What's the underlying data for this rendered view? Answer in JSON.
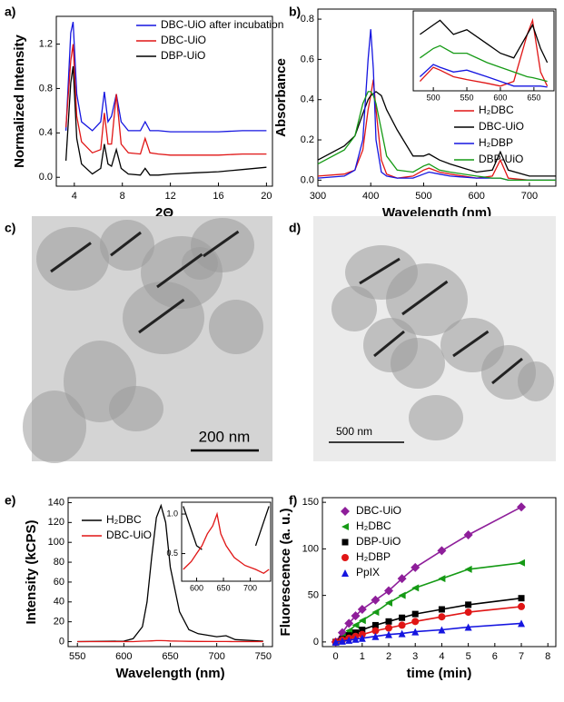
{
  "chart_data": [
    {
      "type": "line",
      "panel": "a)",
      "xlabel": "2Θ",
      "ylabel": "Normalized Intensity",
      "x": [
        3.3,
        3.7,
        3.9,
        4.2,
        4.6,
        5.5,
        6.2,
        6.5,
        6.8,
        7.1,
        7.5,
        7.9,
        8.5,
        9.5,
        9.9,
        10.3,
        11,
        12,
        14,
        16,
        18,
        20
      ],
      "xlim": [
        2.5,
        20.5
      ],
      "ylim": [
        -0.08,
        1.45
      ],
      "xticks": [
        4,
        8,
        12,
        16,
        20
      ],
      "yticks": [
        {
          "value": 0,
          "label": "0.0"
        },
        0.4,
        0.8,
        1.2
      ],
      "series": [
        {
          "name": "DBC-UiO after incubation",
          "color": "#1515e0",
          "values": [
            0.42,
            1.3,
            1.4,
            0.75,
            0.5,
            0.42,
            0.5,
            0.77,
            0.5,
            0.55,
            0.75,
            0.5,
            0.42,
            0.42,
            0.5,
            0.42,
            0.42,
            0.41,
            0.41,
            0.41,
            0.42,
            0.42
          ]
        },
        {
          "name": "DBC-UiO",
          "color": "#e01515",
          "values": [
            0.45,
            1.05,
            1.2,
            0.55,
            0.32,
            0.22,
            0.25,
            0.58,
            0.3,
            0.3,
            0.75,
            0.3,
            0.22,
            0.21,
            0.35,
            0.22,
            0.21,
            0.2,
            0.2,
            0.2,
            0.21,
            0.21
          ]
        },
        {
          "name": "DBP-UiO",
          "color": "#000000",
          "values": [
            0.15,
            0.85,
            1.0,
            0.35,
            0.12,
            0.03,
            0.08,
            0.3,
            0.12,
            0.1,
            0.25,
            0.08,
            0.03,
            0.02,
            0.08,
            0.02,
            0.02,
            0.03,
            0.04,
            0.05,
            0.07,
            0.09
          ]
        }
      ]
    },
    {
      "type": "line",
      "panel": "b)",
      "xlabel": "Wavelength (nm)",
      "ylabel": "Absorbance",
      "x": [
        300,
        350,
        370,
        385,
        395,
        400,
        405,
        410,
        420,
        430,
        450,
        480,
        500,
        510,
        530,
        550,
        600,
        630,
        645,
        660,
        700,
        750
      ],
      "xlim": [
        300,
        750
      ],
      "ylim": [
        -0.03,
        0.85
      ],
      "xticks": [
        300,
        400,
        500,
        600,
        700
      ],
      "yticks": [
        {
          "value": 0,
          "label": "0.0"
        },
        0.2,
        0.4,
        0.6,
        0.8
      ],
      "series": [
        {
          "name": "H₂DBC",
          "color": "#e01515",
          "values": [
            0.02,
            0.03,
            0.05,
            0.15,
            0.35,
            0.42,
            0.5,
            0.35,
            0.1,
            0.03,
            0.01,
            0.02,
            0.05,
            0.06,
            0.04,
            0.03,
            0.01,
            0.02,
            0.1,
            0.01,
            0,
            0
          ]
        },
        {
          "name": "DBC-UiO",
          "color": "#000000",
          "values": [
            0.1,
            0.17,
            0.22,
            0.33,
            0.4,
            0.42,
            0.43,
            0.44,
            0.42,
            0.35,
            0.25,
            0.12,
            0.12,
            0.13,
            0.1,
            0.08,
            0.04,
            0.05,
            0.14,
            0.05,
            0.02,
            0.02
          ]
        },
        {
          "name": "H₂DBP",
          "color": "#1515e0",
          "values": [
            0.01,
            0.02,
            0.05,
            0.2,
            0.6,
            0.75,
            0.55,
            0.2,
            0.04,
            0.02,
            0.01,
            0.01,
            0.03,
            0.04,
            0.03,
            0.02,
            0.01,
            0.01,
            0.01,
            0,
            0,
            0
          ]
        },
        {
          "name": "DBP-UiO",
          "color": "#159a15",
          "values": [
            0.08,
            0.15,
            0.22,
            0.38,
            0.44,
            0.44,
            0.42,
            0.38,
            0.25,
            0.12,
            0.05,
            0.04,
            0.07,
            0.08,
            0.05,
            0.04,
            0.02,
            0.01,
            0.01,
            0,
            0,
            0
          ]
        }
      ]
    },
    {
      "type": "line",
      "x": [
        480,
        500,
        510,
        530,
        550,
        580,
        600,
        620,
        640,
        648,
        660,
        670
      ],
      "xlim": [
        470,
        680
      ],
      "ylim": [
        0,
        0.85
      ],
      "xticks": [
        500,
        550,
        600,
        650
      ],
      "series": [
        {
          "color": "#e01515",
          "values": [
            0.1,
            0.25,
            0.22,
            0.15,
            0.12,
            0.08,
            0.05,
            0.1,
            0.6,
            0.75,
            0.2,
            0.05
          ]
        },
        {
          "color": "#000000",
          "values": [
            0.6,
            0.7,
            0.75,
            0.6,
            0.65,
            0.5,
            0.4,
            0.35,
            0.6,
            0.7,
            0.45,
            0.3
          ]
        },
        {
          "color": "#1515e0",
          "values": [
            0.15,
            0.28,
            0.25,
            0.2,
            0.22,
            0.15,
            0.1,
            0.05,
            0.05,
            0.05,
            0.05,
            0.04
          ]
        },
        {
          "color": "#159a15",
          "values": [
            0.35,
            0.45,
            0.48,
            0.4,
            0.4,
            0.3,
            0.25,
            0.2,
            0.15,
            0.14,
            0.12,
            0.1
          ]
        }
      ]
    },
    {
      "type": "line",
      "panel": "e)",
      "xlabel": "Wavelength (nm)",
      "ylabel": "Intensity (kCPS)",
      "x": [
        550,
        600,
        610,
        620,
        625,
        630,
        635,
        640,
        645,
        650,
        660,
        670,
        680,
        700,
        710,
        720,
        750
      ],
      "xlim": [
        540,
        760
      ],
      "ylim": [
        -5,
        145
      ],
      "xticks": [
        550,
        600,
        650,
        700,
        750
      ],
      "yticks": [
        0,
        20,
        40,
        60,
        80,
        100,
        120,
        140
      ],
      "series": [
        {
          "name": "H₂DBC",
          "color": "#000000",
          "values": [
            0,
            0.5,
            3,
            15,
            40,
            85,
            125,
            137,
            120,
            75,
            30,
            12,
            8,
            5,
            6,
            2,
            0.5
          ]
        },
        {
          "name": "DBC-UiO",
          "color": "#e01515",
          "values": [
            0,
            0,
            0,
            0.5,
            0.6,
            0.8,
            1,
            1,
            0.9,
            0.7,
            0.5,
            0.3,
            0.2,
            0.1,
            0.1,
            0,
            0
          ]
        }
      ]
    },
    {
      "type": "line",
      "x": [
        575,
        590,
        600,
        610,
        620,
        630,
        638,
        645,
        655,
        670,
        690,
        710,
        725,
        735
      ],
      "xlim": [
        572,
        738
      ],
      "ylim": [
        0.15,
        1.15
      ],
      "xticks": [
        600,
        650,
        700
      ],
      "yticks": [
        0.5,
        {
          "value": 1,
          "label": "1.0"
        }
      ],
      "series": [
        {
          "color": "#000000",
          "values": [
            1.1,
            0.8,
            0.6,
            0.55,
            null,
            null,
            null,
            null,
            null,
            null,
            null,
            0.6,
            0.9,
            1.1
          ]
        },
        {
          "color": "#e01515",
          "values": [
            0.3,
            0.4,
            0.5,
            0.6,
            0.75,
            0.85,
            1.0,
            0.75,
            0.6,
            0.45,
            0.35,
            0.3,
            0.25,
            0.3
          ]
        }
      ]
    },
    {
      "type": "scatter",
      "panel": "f)",
      "xlabel": "time (min)",
      "ylabel": "Fluorescence (a. u.)",
      "x": [
        0,
        0.25,
        0.5,
        0.75,
        1,
        1.5,
        2,
        2.5,
        3,
        4,
        5,
        7
      ],
      "xlim": [
        -0.5,
        8.3
      ],
      "ylim": [
        -5,
        155
      ],
      "xticks": [
        0,
        1,
        2,
        3,
        4,
        5,
        6,
        7,
        8
      ],
      "yticks": [
        0,
        50,
        100,
        150
      ],
      "series": [
        {
          "name": "DBC-UiO",
          "color": "#8e1e9a",
          "marker": "diamond",
          "values": [
            0,
            10,
            20,
            28,
            35,
            45,
            55,
            68,
            80,
            98,
            115,
            145
          ]
        },
        {
          "name": "H₂DBC",
          "color": "#159a15",
          "marker": "triangle-left",
          "values": [
            0,
            5,
            12,
            18,
            23,
            32,
            42,
            50,
            58,
            68,
            78,
            85
          ]
        },
        {
          "name": "DBP-UiO",
          "color": "#000000",
          "marker": "square",
          "values": [
            0,
            3,
            7,
            10,
            13,
            18,
            22,
            26,
            30,
            35,
            40,
            47
          ]
        },
        {
          "name": "H₂DBP",
          "color": "#e01515",
          "marker": "circle",
          "values": [
            0,
            2,
            4,
            6,
            8,
            12,
            15,
            18,
            22,
            27,
            32,
            38
          ]
        },
        {
          "name": "PpIX",
          "color": "#1515e0",
          "marker": "triangle-up",
          "values": [
            0,
            1,
            2,
            3,
            4,
            6,
            8,
            9,
            11,
            13,
            16,
            20
          ]
        }
      ]
    }
  ],
  "images": [
    {
      "panel": "c)",
      "scale_bar": "200 nm"
    },
    {
      "panel": "d)",
      "scale_bar": "500 nm"
    }
  ]
}
